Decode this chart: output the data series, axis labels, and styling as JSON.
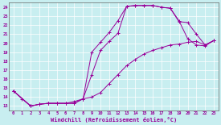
{
  "xlabel": "Windchill (Refroidissement éolien,°C)",
  "xlim": [
    -0.5,
    23.5
  ],
  "ylim": [
    12.5,
    24.5
  ],
  "xticks": [
    0,
    1,
    2,
    3,
    4,
    5,
    6,
    7,
    8,
    9,
    10,
    11,
    12,
    13,
    14,
    15,
    16,
    17,
    18,
    19,
    20,
    21,
    22,
    23
  ],
  "yticks": [
    13,
    14,
    15,
    16,
    17,
    18,
    19,
    20,
    21,
    22,
    23,
    24
  ],
  "bg_color": "#c8eef0",
  "line_color": "#990099",
  "grid_color": "#aadddd",
  "line1": {
    "x": [
      0,
      1,
      2,
      3,
      4,
      5,
      6,
      7,
      8,
      9,
      10,
      11,
      12,
      13,
      14,
      15,
      16,
      17,
      18,
      19,
      20,
      21,
      22,
      23
    ],
    "y": [
      14.7,
      13.8,
      13.0,
      13.2,
      13.3,
      13.3,
      13.3,
      13.3,
      13.8,
      19.0,
      20.1,
      21.2,
      22.5,
      24.1,
      24.2,
      24.2,
      24.2,
      24.0,
      23.9,
      22.5,
      20.5,
      19.8,
      19.7,
      20.3
    ]
  },
  "line2": {
    "x": [
      0,
      2,
      3,
      4,
      5,
      6,
      7,
      8,
      9,
      10,
      11,
      12,
      13,
      14,
      15,
      16,
      17,
      18,
      19,
      20,
      21,
      22,
      23
    ],
    "y": [
      14.7,
      13.0,
      13.2,
      13.3,
      13.3,
      13.3,
      13.3,
      13.8,
      16.5,
      19.2,
      20.2,
      21.1,
      24.1,
      24.2,
      24.2,
      24.2,
      24.0,
      23.9,
      22.4,
      22.3,
      21.0,
      19.8,
      20.3
    ]
  },
  "line3": {
    "x": [
      0,
      2,
      3,
      4,
      5,
      6,
      7,
      8,
      9,
      10,
      11,
      12,
      13,
      14,
      15,
      16,
      17,
      18,
      19,
      20,
      21,
      22,
      23
    ],
    "y": [
      14.7,
      13.0,
      13.2,
      13.3,
      13.3,
      13.3,
      13.5,
      13.8,
      14.0,
      14.5,
      15.5,
      16.5,
      17.5,
      18.2,
      18.8,
      19.2,
      19.5,
      19.8,
      19.9,
      20.1,
      20.2,
      19.8,
      20.3
    ]
  }
}
